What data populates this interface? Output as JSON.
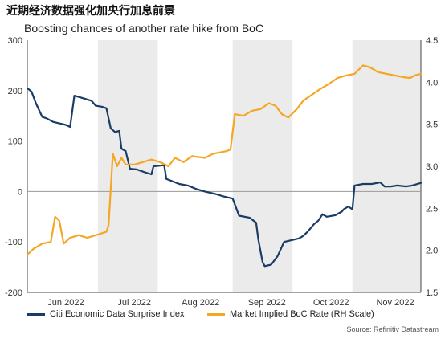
{
  "title": "近期经济数据强化加央行加息前景",
  "subtitle": "Boosting chances of another rate hike from BoC",
  "source": "Source: Refinitiv Datastream",
  "colors": {
    "citi": "#1a3d66",
    "boc": "#f5a623",
    "shade": "#ebebeb",
    "grid": "#d0d0d0"
  },
  "chart_data": {
    "type": "line",
    "x_months": [
      "Jun 2022",
      "Jul 2022",
      "Aug 2022",
      "Sep 2022",
      "Oct 2022",
      "Nov 2022"
    ],
    "x_range": [
      "2022-05-25",
      "2022-11-25"
    ],
    "shaded_periods": [
      [
        "2022-06-27",
        "2022-07-25"
      ],
      [
        "2022-08-29",
        "2022-09-26"
      ],
      [
        "2022-10-24",
        "2022-11-25"
      ]
    ],
    "y_left": {
      "min": -200,
      "max": 300,
      "ticks": [
        -200,
        -100,
        0,
        100,
        200,
        300
      ]
    },
    "y_right": {
      "min": 1.5,
      "max": 4.5,
      "ticks": [
        1.5,
        2.0,
        2.5,
        3.0,
        3.5,
        4.0,
        4.5
      ]
    },
    "series": [
      {
        "name": "Citi Economic Data Surprise Index",
        "axis": "left",
        "points": [
          [
            "2022-05-25",
            205
          ],
          [
            "2022-05-27",
            198
          ],
          [
            "2022-05-29",
            175
          ],
          [
            "2022-06-01",
            148
          ],
          [
            "2022-06-03",
            145
          ],
          [
            "2022-06-06",
            138
          ],
          [
            "2022-06-09",
            135
          ],
          [
            "2022-06-12",
            132
          ],
          [
            "2022-06-14",
            128
          ],
          [
            "2022-06-16",
            190
          ],
          [
            "2022-06-20",
            185
          ],
          [
            "2022-06-24",
            180
          ],
          [
            "2022-06-26",
            170
          ],
          [
            "2022-06-29",
            168
          ],
          [
            "2022-07-01",
            165
          ],
          [
            "2022-07-03",
            125
          ],
          [
            "2022-07-05",
            118
          ],
          [
            "2022-07-07",
            120
          ],
          [
            "2022-07-08",
            85
          ],
          [
            "2022-07-10",
            80
          ],
          [
            "2022-07-12",
            45
          ],
          [
            "2022-07-15",
            44
          ],
          [
            "2022-07-19",
            38
          ],
          [
            "2022-07-22",
            34
          ],
          [
            "2022-07-23",
            50
          ],
          [
            "2022-07-28",
            52
          ],
          [
            "2022-07-29",
            25
          ],
          [
            "2022-08-04",
            15
          ],
          [
            "2022-08-08",
            12
          ],
          [
            "2022-08-12",
            5
          ],
          [
            "2022-08-16",
            0
          ],
          [
            "2022-08-21",
            -5
          ],
          [
            "2022-08-25",
            -10
          ],
          [
            "2022-08-29",
            -14
          ],
          [
            "2022-09-01",
            -48
          ],
          [
            "2022-09-06",
            -52
          ],
          [
            "2022-09-09",
            -62
          ],
          [
            "2022-09-10",
            -95
          ],
          [
            "2022-09-12",
            -140
          ],
          [
            "2022-09-13",
            -148
          ],
          [
            "2022-09-16",
            -145
          ],
          [
            "2022-09-19",
            -128
          ],
          [
            "2022-09-22",
            -100
          ],
          [
            "2022-09-25",
            -97
          ],
          [
            "2022-09-29",
            -93
          ],
          [
            "2022-10-01",
            -88
          ],
          [
            "2022-10-03",
            -80
          ],
          [
            "2022-10-06",
            -65
          ],
          [
            "2022-10-08",
            -58
          ],
          [
            "2022-10-10",
            -45
          ],
          [
            "2022-10-12",
            -50
          ],
          [
            "2022-10-16",
            -47
          ],
          [
            "2022-10-19",
            -40
          ],
          [
            "2022-10-20",
            -35
          ],
          [
            "2022-10-22",
            -30
          ],
          [
            "2022-10-24",
            -35
          ],
          [
            "2022-10-25",
            12
          ],
          [
            "2022-10-29",
            15
          ],
          [
            "2022-11-02",
            15
          ],
          [
            "2022-11-06",
            18
          ],
          [
            "2022-11-08",
            10
          ],
          [
            "2022-11-11",
            10
          ],
          [
            "2022-11-14",
            12
          ],
          [
            "2022-11-18",
            10
          ],
          [
            "2022-11-21",
            12
          ],
          [
            "2022-11-25",
            17
          ]
        ]
      },
      {
        "name": "Market Implied BoC Rate (RH Scale)",
        "axis": "right",
        "points": [
          [
            "2022-05-25",
            1.95
          ],
          [
            "2022-05-28",
            2.02
          ],
          [
            "2022-06-01",
            2.08
          ],
          [
            "2022-06-05",
            2.1
          ],
          [
            "2022-06-07",
            2.4
          ],
          [
            "2022-06-09",
            2.35
          ],
          [
            "2022-06-11",
            2.08
          ],
          [
            "2022-06-14",
            2.15
          ],
          [
            "2022-06-18",
            2.18
          ],
          [
            "2022-06-22",
            2.15
          ],
          [
            "2022-06-26",
            2.18
          ],
          [
            "2022-07-01",
            2.22
          ],
          [
            "2022-07-02",
            2.3
          ],
          [
            "2022-07-04",
            3.15
          ],
          [
            "2022-07-06",
            3.0
          ],
          [
            "2022-07-08",
            3.1
          ],
          [
            "2022-07-10",
            3.02
          ],
          [
            "2022-07-14",
            3.02
          ],
          [
            "2022-07-18",
            3.05
          ],
          [
            "2022-07-22",
            3.08
          ],
          [
            "2022-07-26",
            3.05
          ],
          [
            "2022-07-30",
            3.0
          ],
          [
            "2022-08-02",
            3.1
          ],
          [
            "2022-08-06",
            3.05
          ],
          [
            "2022-08-10",
            3.12
          ],
          [
            "2022-08-16",
            3.1
          ],
          [
            "2022-08-20",
            3.15
          ],
          [
            "2022-08-26",
            3.18
          ],
          [
            "2022-08-28",
            3.2
          ],
          [
            "2022-08-30",
            3.62
          ],
          [
            "2022-09-03",
            3.6
          ],
          [
            "2022-09-07",
            3.66
          ],
          [
            "2022-09-11",
            3.68
          ],
          [
            "2022-09-15",
            3.75
          ],
          [
            "2022-09-18",
            3.72
          ],
          [
            "2022-09-21",
            3.62
          ],
          [
            "2022-09-24",
            3.58
          ],
          [
            "2022-09-28",
            3.68
          ],
          [
            "2022-10-01",
            3.78
          ],
          [
            "2022-10-05",
            3.85
          ],
          [
            "2022-10-09",
            3.92
          ],
          [
            "2022-10-13",
            3.98
          ],
          [
            "2022-10-17",
            4.05
          ],
          [
            "2022-10-21",
            4.08
          ],
          [
            "2022-10-25",
            4.1
          ],
          [
            "2022-10-29",
            4.2
          ],
          [
            "2022-11-01",
            4.18
          ],
          [
            "2022-11-05",
            4.12
          ],
          [
            "2022-11-09",
            4.1
          ],
          [
            "2022-11-13",
            4.08
          ],
          [
            "2022-11-17",
            4.06
          ],
          [
            "2022-11-20",
            4.05
          ],
          [
            "2022-11-22",
            4.08
          ],
          [
            "2022-11-25",
            4.1
          ]
        ]
      }
    ],
    "grid": false,
    "legend_position": "bottom"
  }
}
